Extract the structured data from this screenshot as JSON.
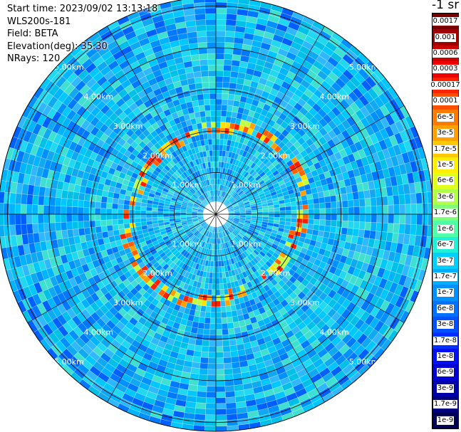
{
  "info": {
    "start_time": "Start time: 2023/09/02 13:13:18",
    "instrument": "WLS200s-181",
    "field": "Field: BETA",
    "elevation": "Elevation(deg): 35.30",
    "nrays": "NRays: 120"
  },
  "chart_data": {
    "type": "polar-heatmap",
    "field": "BETA",
    "range_ring_labels_km": [
      1.0,
      2.0,
      3.0,
      4.0,
      5.0
    ],
    "range_ring_text": [
      "1.00km",
      "2.00km",
      "3.00km",
      "4.00km",
      "5.00km"
    ],
    "n_rays": 120,
    "colorbar": {
      "title": "-1 sr",
      "ticks": [
        "0.0017",
        "0.001",
        "0.0006",
        "0.0003",
        "0.00017",
        "0.0001",
        "6e-5",
        "3e-5",
        "1.7e-5",
        "1e-5",
        "6e-6",
        "3e-6",
        "1.7e-6",
        "1e-6",
        "6e-7",
        "3e-7",
        "1.7e-7",
        "1e-7",
        "6e-8",
        "3e-8",
        "1.7e-8",
        "1e-8",
        "6e-9",
        "3e-9",
        "1.7e-9",
        "1e-9"
      ],
      "colors": [
        "#7a0000",
        "#a00000",
        "#c80000",
        "#ee0000",
        "#ff2400",
        "#ff5000",
        "#ff7a00",
        "#ffa000",
        "#ffc800",
        "#fff000",
        "#e0ff1a",
        "#b0ff48",
        "#80ff78",
        "#4fffa8",
        "#20f0d8",
        "#00d0ff",
        "#00b0ff",
        "#0090ff",
        "#0070ff",
        "#0050ff",
        "#0030ff",
        "#0010f0",
        "#0000d0",
        "#0000a8",
        "#00007e",
        "#000055"
      ]
    }
  }
}
